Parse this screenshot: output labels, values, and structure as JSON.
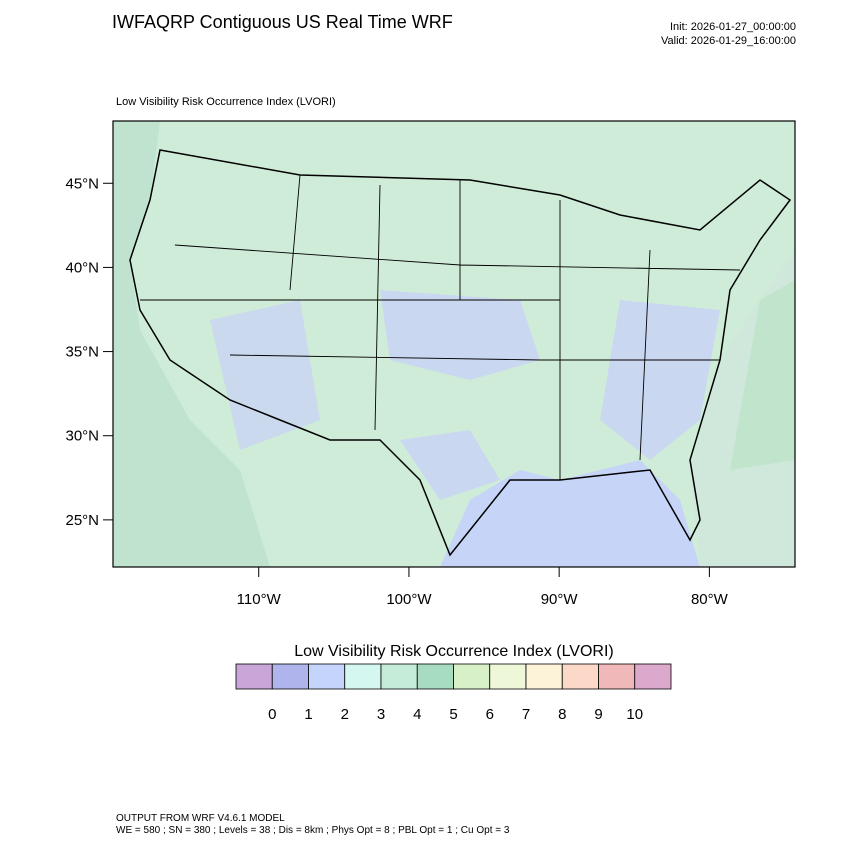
{
  "header": {
    "title": "IWFAQRP Contiguous US Real Time WRF",
    "init": "Init: 2026-01-27_00:00:00",
    "valid": "Valid: 2026-01-29_16:00:00"
  },
  "map": {
    "subtitle": "Low Visibility Risk Occurrence Index   (LVORI)",
    "lat_range": [
      22.2,
      48.7
    ],
    "lon_range": [
      -119.7,
      -74.3
    ],
    "lat_ticks": [
      {
        "value": 45,
        "label": "45°N"
      },
      {
        "value": 40,
        "label": "40°N"
      },
      {
        "value": 35,
        "label": "35°N"
      },
      {
        "value": 30,
        "label": "30°N"
      },
      {
        "value": 25,
        "label": "25°N"
      }
    ],
    "lon_ticks": [
      {
        "value": -110,
        "label": "110°W"
      },
      {
        "value": -100,
        "label": "100°W"
      },
      {
        "value": -90,
        "label": "90°W"
      },
      {
        "value": -80,
        "label": "80°W"
      }
    ]
  },
  "colorbar": {
    "title": "Low Visibility Risk Occurrence Index  (LVORI)",
    "colors": [
      "#c8a6d8",
      "#b0b4ec",
      "#c4d4fb",
      "#d4f8f0",
      "#c4ecd8",
      "#a8dcc0",
      "#d8f0c8",
      "#eef8d8",
      "#fdf3d8",
      "#fcd8c8",
      "#f0b8b8",
      "#dca8cc"
    ],
    "levels": [
      0,
      1,
      2,
      3,
      4,
      5,
      6,
      7,
      8,
      9,
      10
    ]
  },
  "footer": {
    "line1": "OUTPUT FROM WRF V4.6.1 MODEL",
    "line2": "WE = 580 ; SN = 380 ; Levels = 38 ; Dis = 8km ; Phys Opt = 8 ; PBL Opt = 1 ; Cu Opt = 3"
  }
}
